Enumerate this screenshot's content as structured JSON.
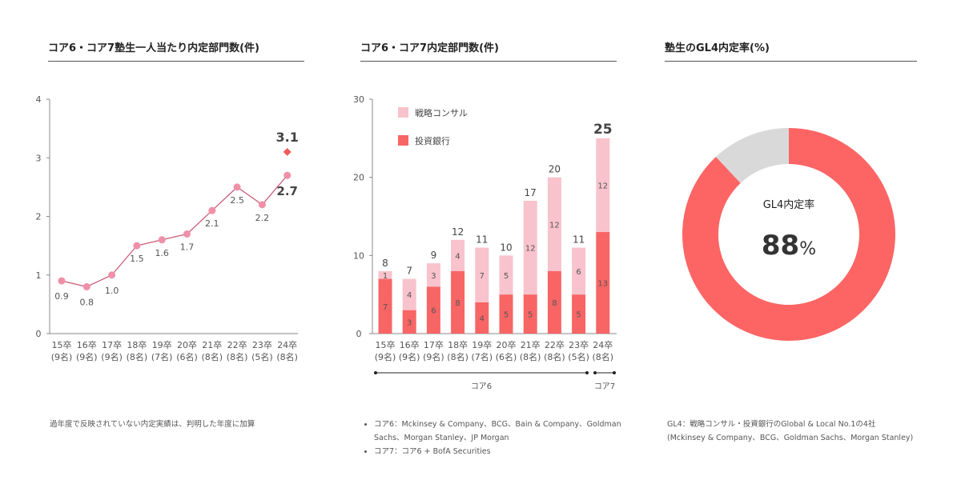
{
  "colors": {
    "line": "#c9607a",
    "point": "#f08fa8",
    "highlight": "#f05a5a",
    "consul": "#f8c3cc",
    "bank": "#f86565",
    "gray": "#d9d9d9",
    "donut": "#fd6565"
  },
  "chart_data": [
    {
      "type": "line",
      "title": "コア6・コア7塾生一人当たり内定部門数(件)",
      "categories": [
        "15卒",
        "16卒",
        "17卒",
        "18卒",
        "19卒",
        "20卒",
        "21卒",
        "22卒",
        "23卒",
        "24卒"
      ],
      "category_sub": [
        "(9名)",
        "(9名)",
        "(9名)",
        "(8名)",
        "(7名)",
        "(6名)",
        "(8名)",
        "(8名)",
        "(5名)",
        "(8名)"
      ],
      "values": [
        0.9,
        0.8,
        1.0,
        1.5,
        1.6,
        1.7,
        2.1,
        2.5,
        2.2,
        2.7
      ],
      "value_labels": [
        "0.9",
        "0.8",
        "1.0",
        "1.5",
        "1.6",
        "1.7",
        "2.1",
        "2.5",
        "2.2",
        "2.7"
      ],
      "extra_point": {
        "category": "24卒",
        "value": 3.1,
        "label": "3.1"
      },
      "ylim": [
        0,
        4
      ],
      "yticks": [
        "0",
        "1",
        "2",
        "3",
        "4"
      ],
      "grid": false,
      "note": "過年度で反映されていない内定実績は、判明した年度に加算"
    },
    {
      "type": "bar",
      "stacked": true,
      "title": "コア6・コア7内定部門数(件)",
      "categories": [
        "15卒",
        "16卒",
        "17卒",
        "18卒",
        "19卒",
        "20卒",
        "21卒",
        "22卒",
        "23卒",
        "24卒"
      ],
      "category_sub": [
        "(9名)",
        "(9名)",
        "(9名)",
        "(8名)",
        "(7名)",
        "(6名)",
        "(8名)",
        "(8名)",
        "(5名)",
        "(8名)"
      ],
      "series": [
        {
          "name": "投資銀行",
          "values": [
            7,
            3,
            6,
            8,
            4,
            5,
            5,
            8,
            5,
            13
          ]
        },
        {
          "name": "戦略コンサル",
          "values": [
            1,
            4,
            3,
            4,
            7,
            5,
            12,
            12,
            6,
            12
          ]
        }
      ],
      "totals": [
        8,
        7,
        9,
        12,
        11,
        10,
        17,
        20,
        11,
        25
      ],
      "ylim": [
        0,
        30
      ],
      "yticks": [
        "0",
        "10",
        "20",
        "30"
      ],
      "legend": "top-left",
      "groups": [
        {
          "label": "コア6",
          "range": [
            "15卒",
            "23卒"
          ]
        },
        {
          "label": "コア7",
          "range": [
            "24卒",
            "24卒"
          ]
        }
      ],
      "notes": [
        "コア6：Mckinsey & Company、BCG、Bain & Company、Goldman Sachs、Morgan Stanley、JP Morgan",
        "コア7：コア6 + BofA Securities"
      ]
    },
    {
      "type": "pie",
      "donut": true,
      "title": "塾生のGL4内定率(%)",
      "values": [
        88,
        12
      ],
      "center_label": "GL4内定率",
      "center_value": "88",
      "center_unit": "%",
      "notes": [
        "GL4：戦略コンサル・投資銀行のGlobal & Local No.1の4社",
        "(Mckinsey & Company、BCG、Goldman Sachs、Morgan Stanley)"
      ]
    }
  ]
}
